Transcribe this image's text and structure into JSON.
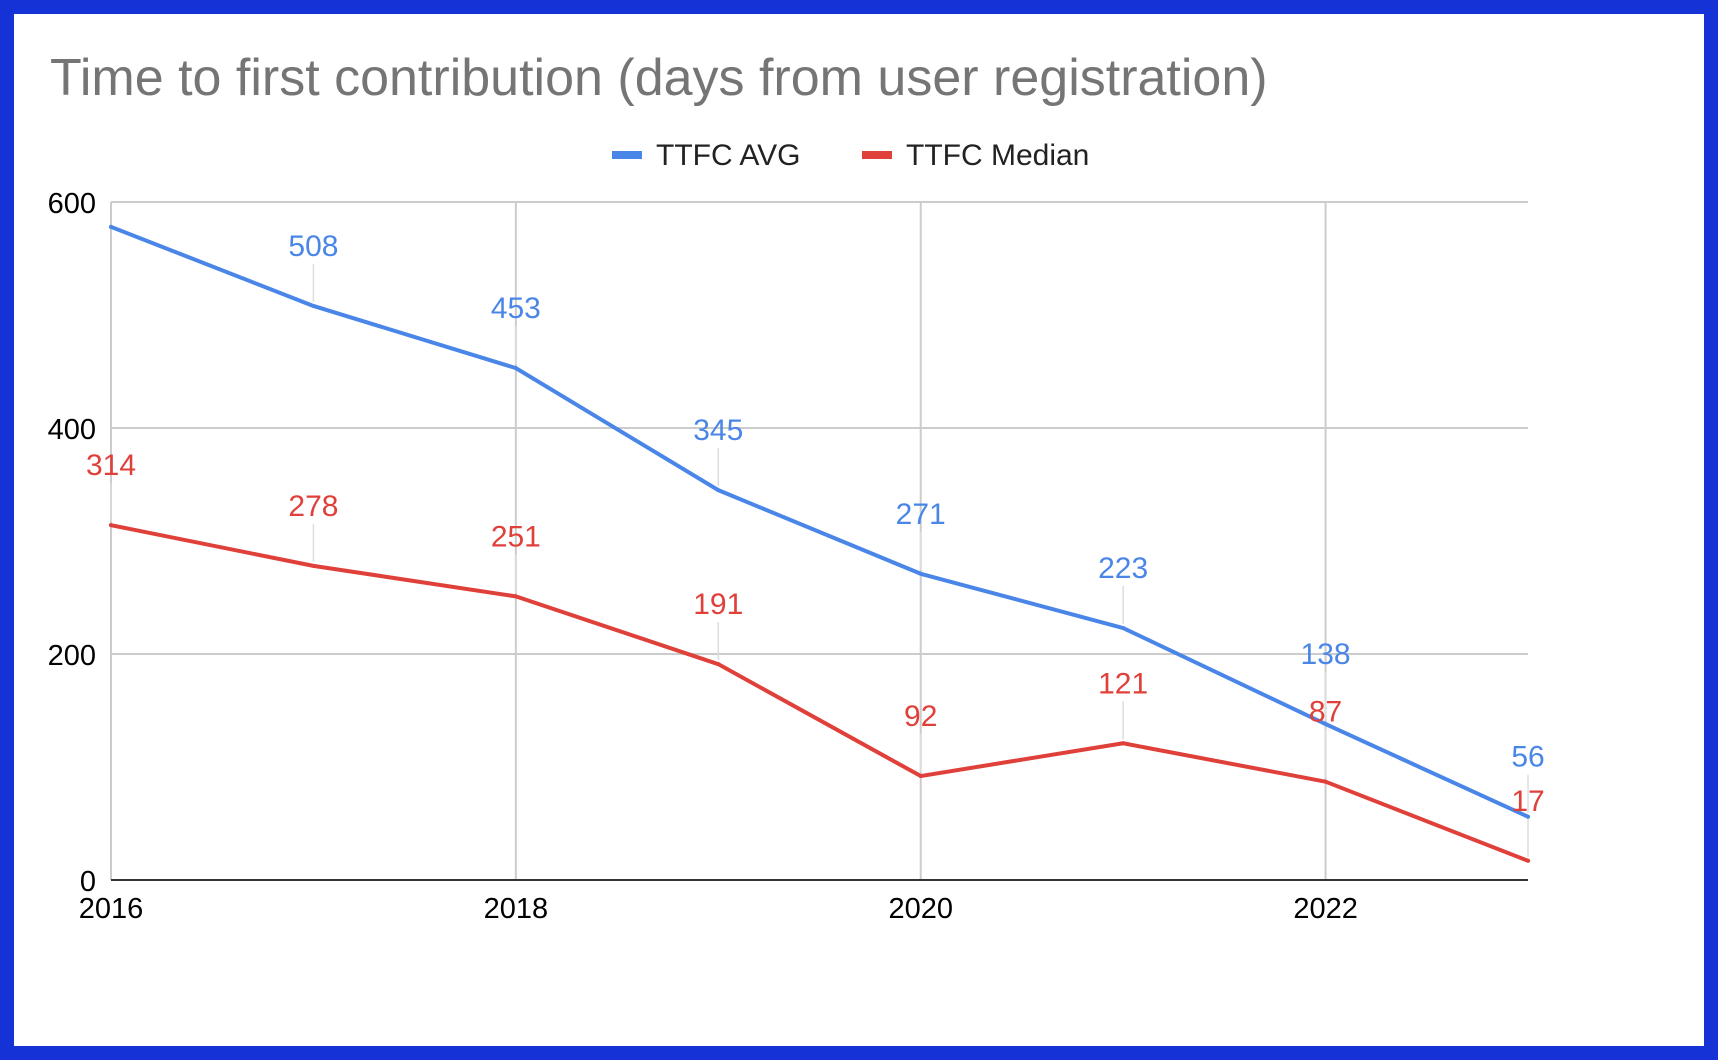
{
  "chart_data": {
    "type": "line",
    "title": "Time to first contribution (days from user registration)",
    "xlabel": "",
    "ylabel": "",
    "x": [
      2016,
      2017,
      2018,
      2019,
      2020,
      2021,
      2022,
      2023
    ],
    "xlim": [
      2016,
      2023
    ],
    "ylim": [
      0,
      600
    ],
    "x_ticks": [
      "2016",
      "2018",
      "2020",
      "2022"
    ],
    "x_tick_values": [
      2016,
      2018,
      2020,
      2022
    ],
    "y_ticks": [
      "0",
      "200",
      "400",
      "600"
    ],
    "y_tick_values": [
      0,
      200,
      400,
      600
    ],
    "grid": true,
    "legend_position": "top-center",
    "series": [
      {
        "name": "TTFC AVG",
        "color": "#4a86e8",
        "values": [
          578,
          508,
          453,
          345,
          271,
          223,
          138,
          56
        ],
        "data_labels": [
          "",
          "508",
          "453",
          "345",
          "271",
          "223",
          "138",
          "56"
        ]
      },
      {
        "name": "TTFC Median",
        "color": "#e0403a",
        "values": [
          314,
          278,
          251,
          191,
          92,
          121,
          87,
          17
        ],
        "data_labels": [
          "314",
          "278",
          "251",
          "191",
          "92",
          "121",
          "87",
          "17"
        ]
      }
    ]
  }
}
